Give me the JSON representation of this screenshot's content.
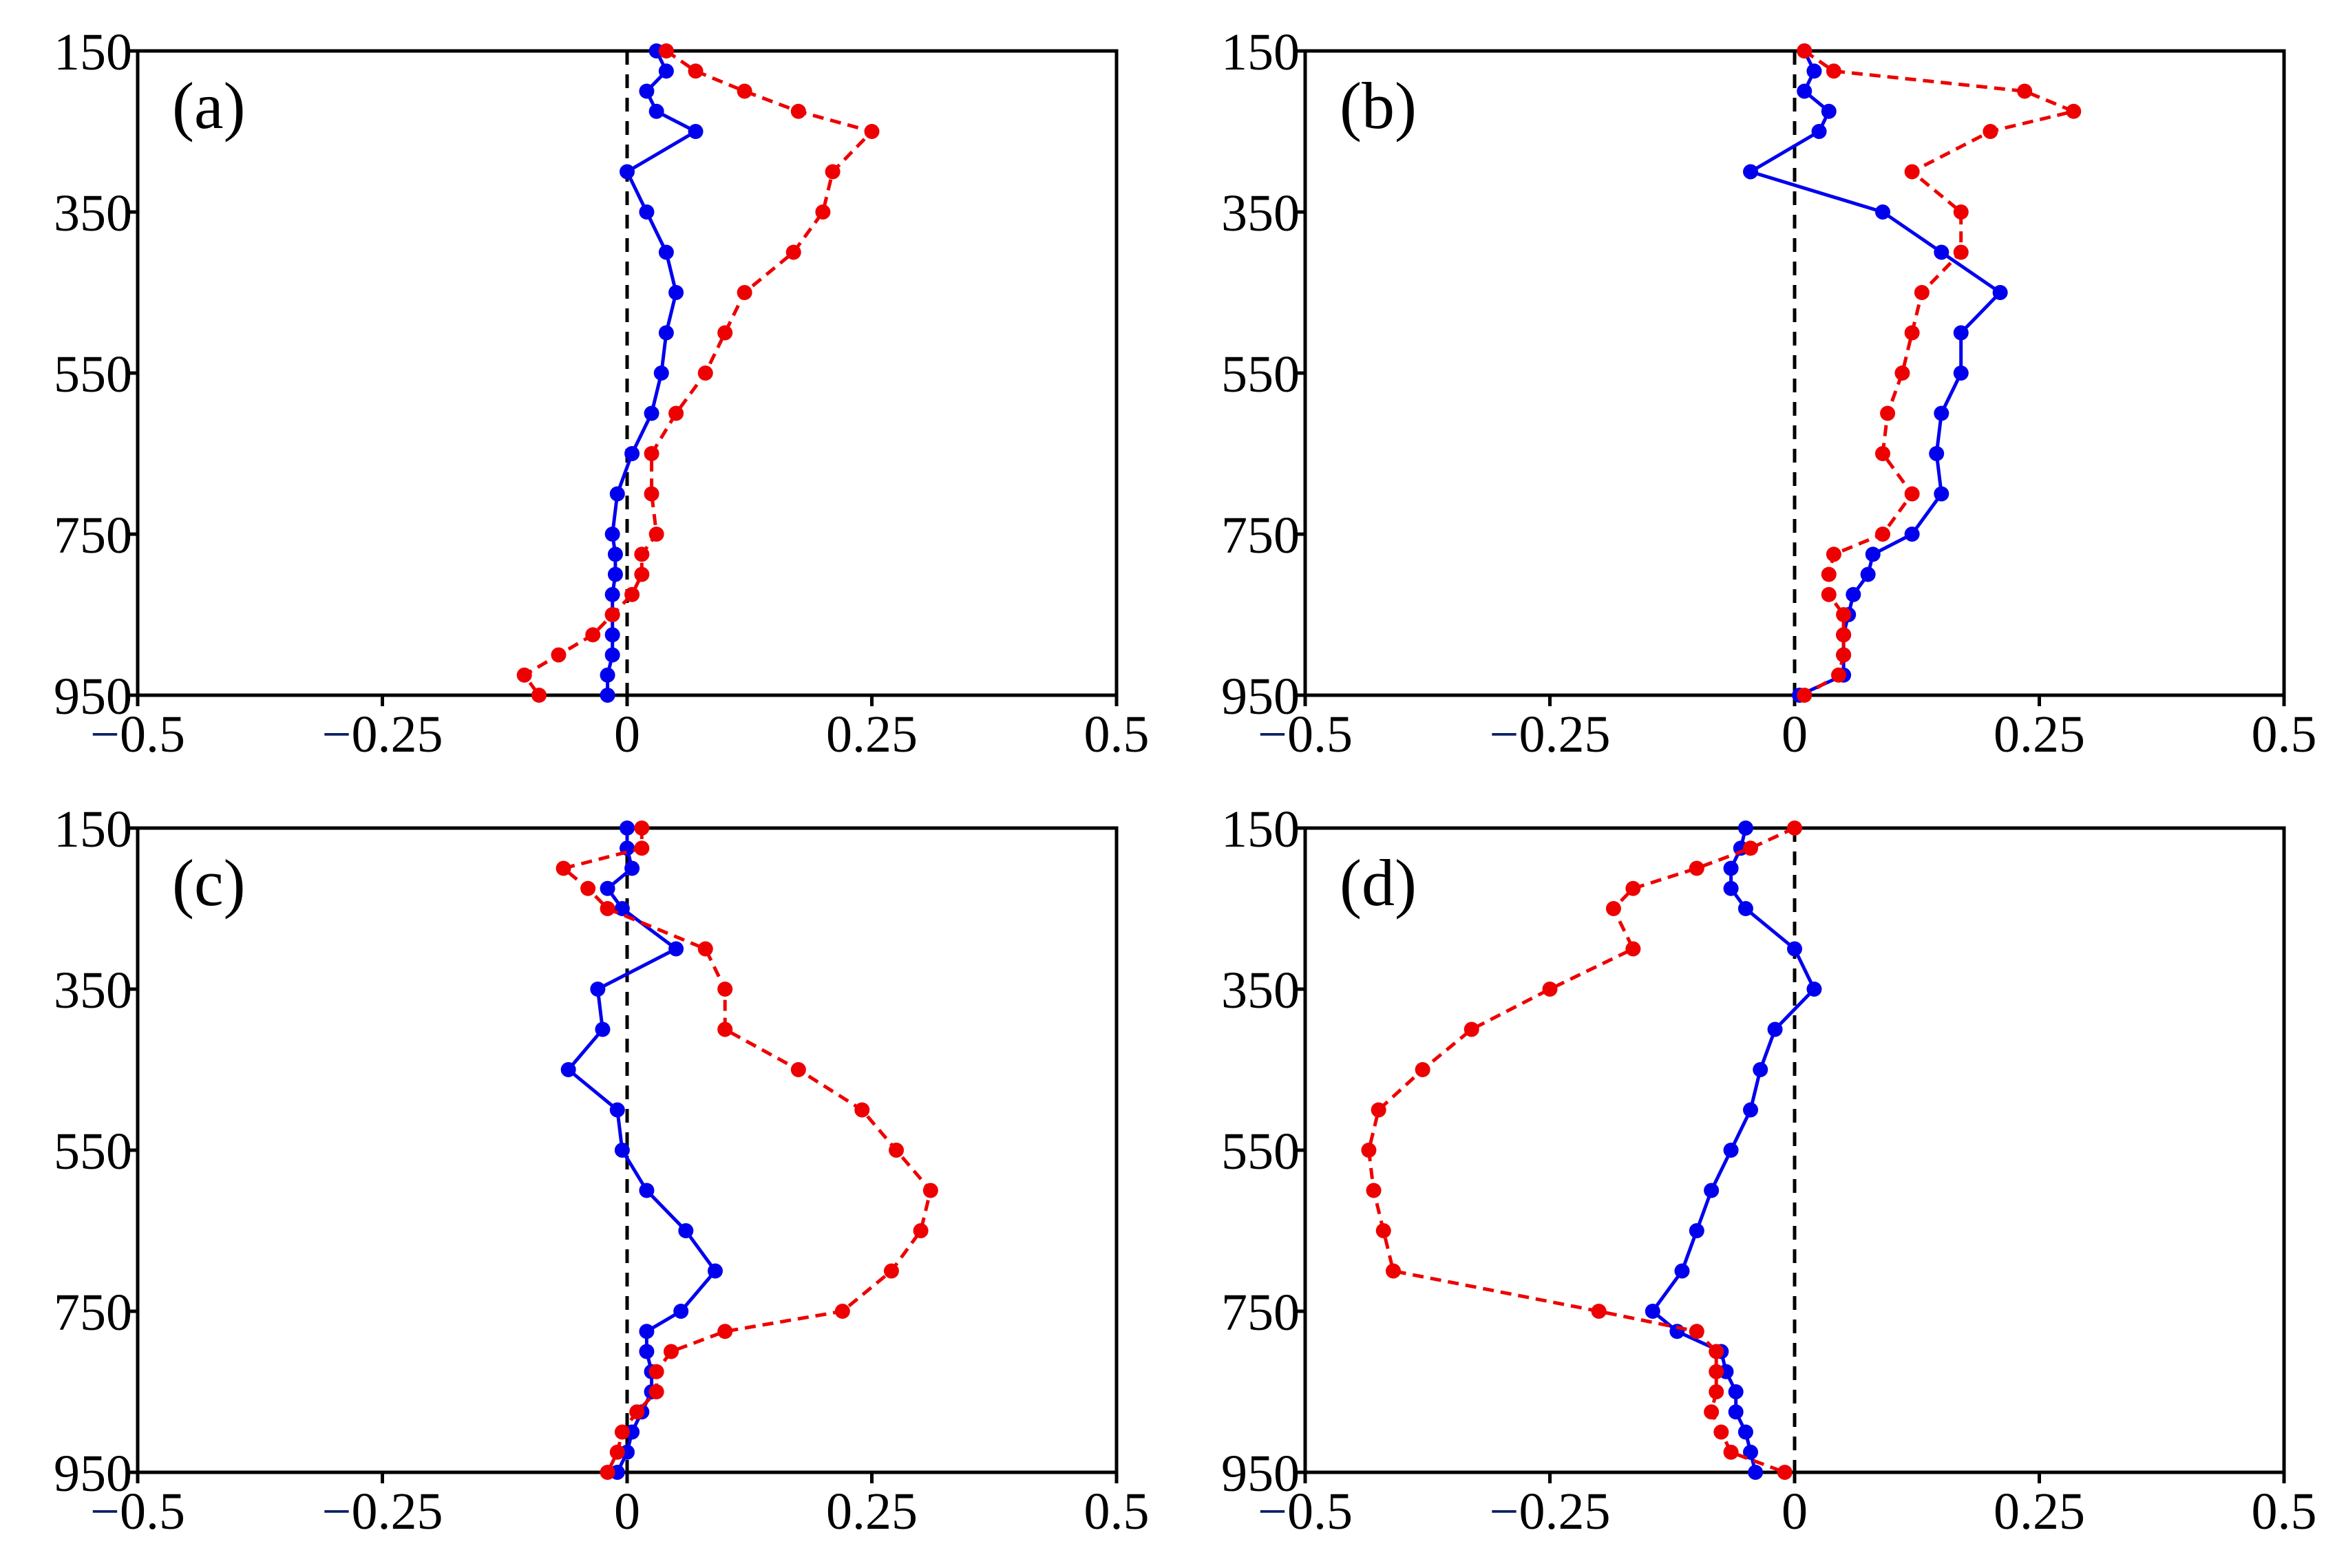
{
  "chart_data": [
    {
      "type": "line",
      "panel_label": "(a)",
      "xlim": [
        -0.5,
        0.5
      ],
      "ylim": [
        950,
        150
      ],
      "x_tick_labels": [
        {
          "sign": "−",
          "num": "0.5",
          "value": -0.5
        },
        {
          "sign": "−",
          "num": "0.25",
          "value": -0.25
        },
        {
          "sign": "",
          "num": "0",
          "value": 0
        },
        {
          "sign": "",
          "num": "0.25",
          "value": 0.25
        },
        {
          "sign": "",
          "num": "0.5",
          "value": 0.5
        }
      ],
      "y_tick_labels": [
        {
          "label": "150",
          "value": 150
        },
        {
          "label": "350",
          "value": 350
        },
        {
          "label": "550",
          "value": 550
        },
        {
          "label": "750",
          "value": 750
        },
        {
          "label": "950",
          "value": 950
        }
      ],
      "series": [
        {
          "name": "blue-solid",
          "color": "#0000ee",
          "style": "solid",
          "points": [
            [
              0.03,
              150
            ],
            [
              0.04,
              175
            ],
            [
              0.02,
              200
            ],
            [
              0.03,
              225
            ],
            [
              0.07,
              250
            ],
            [
              0.0,
              300
            ],
            [
              0.02,
              350
            ],
            [
              0.04,
              400
            ],
            [
              0.05,
              450
            ],
            [
              0.04,
              500
            ],
            [
              0.035,
              550
            ],
            [
              0.025,
              600
            ],
            [
              0.005,
              650
            ],
            [
              -0.01,
              700
            ],
            [
              -0.015,
              750
            ],
            [
              -0.012,
              775
            ],
            [
              -0.012,
              800
            ],
            [
              -0.015,
              825
            ],
            [
              -0.015,
              850
            ],
            [
              -0.015,
              875
            ],
            [
              -0.015,
              900
            ],
            [
              -0.02,
              925
            ],
            [
              -0.02,
              950
            ]
          ]
        },
        {
          "name": "red-dashed",
          "color": "#ee0000",
          "style": "dashed",
          "points": [
            [
              0.04,
              150
            ],
            [
              0.07,
              175
            ],
            [
              0.12,
              200
            ],
            [
              0.175,
              225
            ],
            [
              0.25,
              250
            ],
            [
              0.21,
              300
            ],
            [
              0.2,
              350
            ],
            [
              0.17,
              400
            ],
            [
              0.12,
              450
            ],
            [
              0.1,
              500
            ],
            [
              0.08,
              550
            ],
            [
              0.05,
              600
            ],
            [
              0.025,
              650
            ],
            [
              0.025,
              700
            ],
            [
              0.03,
              750
            ],
            [
              0.015,
              775
            ],
            [
              0.015,
              800
            ],
            [
              0.005,
              825
            ],
            [
              -0.015,
              850
            ],
            [
              -0.035,
              875
            ],
            [
              -0.07,
              900
            ],
            [
              -0.105,
              925
            ],
            [
              -0.09,
              950
            ]
          ]
        }
      ]
    },
    {
      "type": "line",
      "panel_label": "(b)",
      "xlim": [
        -0.5,
        0.5
      ],
      "ylim": [
        950,
        150
      ],
      "x_tick_labels": [
        {
          "sign": "−",
          "num": "0.5",
          "value": -0.5
        },
        {
          "sign": "−",
          "num": "0.25",
          "value": -0.25
        },
        {
          "sign": "",
          "num": "0",
          "value": 0
        },
        {
          "sign": "",
          "num": "0.25",
          "value": 0.25
        },
        {
          "sign": "",
          "num": "0.5",
          "value": 0.5
        }
      ],
      "y_tick_labels": [
        {
          "label": "150",
          "value": 150
        },
        {
          "label": "350",
          "value": 350
        },
        {
          "label": "550",
          "value": 550
        },
        {
          "label": "750",
          "value": 750
        },
        {
          "label": "950",
          "value": 950
        }
      ],
      "series": [
        {
          "name": "blue-solid",
          "color": "#0000ee",
          "style": "solid",
          "points": [
            [
              0.01,
              150
            ],
            [
              0.02,
              175
            ],
            [
              0.01,
              200
            ],
            [
              0.035,
              225
            ],
            [
              0.025,
              250
            ],
            [
              -0.045,
              300
            ],
            [
              0.09,
              350
            ],
            [
              0.15,
              400
            ],
            [
              0.21,
              450
            ],
            [
              0.17,
              500
            ],
            [
              0.17,
              550
            ],
            [
              0.15,
              600
            ],
            [
              0.145,
              650
            ],
            [
              0.15,
              700
            ],
            [
              0.12,
              750
            ],
            [
              0.08,
              775
            ],
            [
              0.075,
              800
            ],
            [
              0.06,
              825
            ],
            [
              0.055,
              850
            ],
            [
              0.05,
              875
            ],
            [
              0.05,
              900
            ],
            [
              0.05,
              925
            ],
            [
              0.005,
              950
            ]
          ]
        },
        {
          "name": "red-dashed",
          "color": "#ee0000",
          "style": "dashed",
          "points": [
            [
              0.01,
              150
            ],
            [
              0.04,
              175
            ],
            [
              0.235,
              200
            ],
            [
              0.285,
              225
            ],
            [
              0.2,
              250
            ],
            [
              0.12,
              300
            ],
            [
              0.17,
              350
            ],
            [
              0.17,
              400
            ],
            [
              0.13,
              450
            ],
            [
              0.12,
              500
            ],
            [
              0.11,
              550
            ],
            [
              0.095,
              600
            ],
            [
              0.09,
              650
            ],
            [
              0.12,
              700
            ],
            [
              0.09,
              750
            ],
            [
              0.04,
              775
            ],
            [
              0.035,
              800
            ],
            [
              0.035,
              825
            ],
            [
              0.05,
              850
            ],
            [
              0.05,
              875
            ],
            [
              0.05,
              900
            ],
            [
              0.045,
              925
            ],
            [
              0.01,
              950
            ]
          ]
        }
      ]
    },
    {
      "type": "line",
      "panel_label": "(c)",
      "xlim": [
        -0.5,
        0.5
      ],
      "ylim": [
        950,
        150
      ],
      "x_tick_labels": [
        {
          "sign": "−",
          "num": "0.5",
          "value": -0.5
        },
        {
          "sign": "−",
          "num": "0.25",
          "value": -0.25
        },
        {
          "sign": "",
          "num": "0",
          "value": 0
        },
        {
          "sign": "",
          "num": "0.25",
          "value": 0.25
        },
        {
          "sign": "",
          "num": "0.5",
          "value": 0.5
        }
      ],
      "y_tick_labels": [
        {
          "label": "150",
          "value": 150
        },
        {
          "label": "350",
          "value": 350
        },
        {
          "label": "550",
          "value": 550
        },
        {
          "label": "750",
          "value": 750
        },
        {
          "label": "950",
          "value": 950
        }
      ],
      "series": [
        {
          "name": "blue-solid",
          "color": "#0000ee",
          "style": "solid",
          "points": [
            [
              0.0,
              150
            ],
            [
              0.0,
              175
            ],
            [
              0.005,
              200
            ],
            [
              -0.02,
              225
            ],
            [
              -0.005,
              250
            ],
            [
              0.05,
              300
            ],
            [
              -0.03,
              350
            ],
            [
              -0.025,
              400
            ],
            [
              -0.06,
              450
            ],
            [
              -0.01,
              500
            ],
            [
              -0.005,
              550
            ],
            [
              0.02,
              600
            ],
            [
              0.06,
              650
            ],
            [
              0.09,
              700
            ],
            [
              0.055,
              750
            ],
            [
              0.02,
              775
            ],
            [
              0.02,
              800
            ],
            [
              0.025,
              825
            ],
            [
              0.025,
              850
            ],
            [
              0.015,
              875
            ],
            [
              0.005,
              900
            ],
            [
              0.0,
              925
            ],
            [
              -0.01,
              950
            ]
          ]
        },
        {
          "name": "red-dashed",
          "color": "#ee0000",
          "style": "dashed",
          "points": [
            [
              0.015,
              150
            ],
            [
              0.015,
              175
            ],
            [
              -0.065,
              200
            ],
            [
              -0.04,
              225
            ],
            [
              -0.02,
              250
            ],
            [
              0.08,
              300
            ],
            [
              0.1,
              350
            ],
            [
              0.1,
              400
            ],
            [
              0.175,
              450
            ],
            [
              0.24,
              500
            ],
            [
              0.275,
              550
            ],
            [
              0.31,
              600
            ],
            [
              0.3,
              650
            ],
            [
              0.27,
              700
            ],
            [
              0.22,
              750
            ],
            [
              0.1,
              775
            ],
            [
              0.045,
              800
            ],
            [
              0.03,
              825
            ],
            [
              0.03,
              850
            ],
            [
              0.01,
              875
            ],
            [
              -0.005,
              900
            ],
            [
              -0.01,
              925
            ],
            [
              -0.02,
              950
            ]
          ]
        }
      ]
    },
    {
      "type": "line",
      "panel_label": "(d)",
      "xlim": [
        -0.5,
        0.5
      ],
      "ylim": [
        950,
        150
      ],
      "x_tick_labels": [
        {
          "sign": "−",
          "num": "0.5",
          "value": -0.5
        },
        {
          "sign": "−",
          "num": "0.25",
          "value": -0.25
        },
        {
          "sign": "",
          "num": "0",
          "value": 0
        },
        {
          "sign": "",
          "num": "0.25",
          "value": 0.25
        },
        {
          "sign": "",
          "num": "0.5",
          "value": 0.5
        }
      ],
      "y_tick_labels": [
        {
          "label": "150",
          "value": 150
        },
        {
          "label": "350",
          "value": 350
        },
        {
          "label": "550",
          "value": 550
        },
        {
          "label": "750",
          "value": 750
        },
        {
          "label": "950",
          "value": 950
        }
      ],
      "series": [
        {
          "name": "blue-solid",
          "color": "#0000ee",
          "style": "solid",
          "points": [
            [
              -0.05,
              150
            ],
            [
              -0.055,
              175
            ],
            [
              -0.065,
              200
            ],
            [
              -0.065,
              225
            ],
            [
              -0.05,
              250
            ],
            [
              0.0,
              300
            ],
            [
              0.02,
              350
            ],
            [
              -0.02,
              400
            ],
            [
              -0.035,
              450
            ],
            [
              -0.045,
              500
            ],
            [
              -0.065,
              550
            ],
            [
              -0.085,
              600
            ],
            [
              -0.1,
              650
            ],
            [
              -0.115,
              700
            ],
            [
              -0.145,
              750
            ],
            [
              -0.12,
              775
            ],
            [
              -0.075,
              800
            ],
            [
              -0.07,
              825
            ],
            [
              -0.06,
              850
            ],
            [
              -0.06,
              875
            ],
            [
              -0.05,
              900
            ],
            [
              -0.045,
              925
            ],
            [
              -0.04,
              950
            ]
          ]
        },
        {
          "name": "red-dashed",
          "color": "#ee0000",
          "style": "dashed",
          "points": [
            [
              0.0,
              150
            ],
            [
              -0.045,
              175
            ],
            [
              -0.1,
              200
            ],
            [
              -0.165,
              225
            ],
            [
              -0.185,
              250
            ],
            [
              -0.165,
              300
            ],
            [
              -0.25,
              350
            ],
            [
              -0.33,
              400
            ],
            [
              -0.38,
              450
            ],
            [
              -0.425,
              500
            ],
            [
              -0.435,
              550
            ],
            [
              -0.43,
              600
            ],
            [
              -0.42,
              650
            ],
            [
              -0.41,
              700
            ],
            [
              -0.2,
              750
            ],
            [
              -0.1,
              775
            ],
            [
              -0.08,
              800
            ],
            [
              -0.08,
              825
            ],
            [
              -0.08,
              850
            ],
            [
              -0.085,
              875
            ],
            [
              -0.075,
              900
            ],
            [
              -0.065,
              925
            ],
            [
              -0.01,
              950
            ]
          ]
        }
      ]
    }
  ]
}
